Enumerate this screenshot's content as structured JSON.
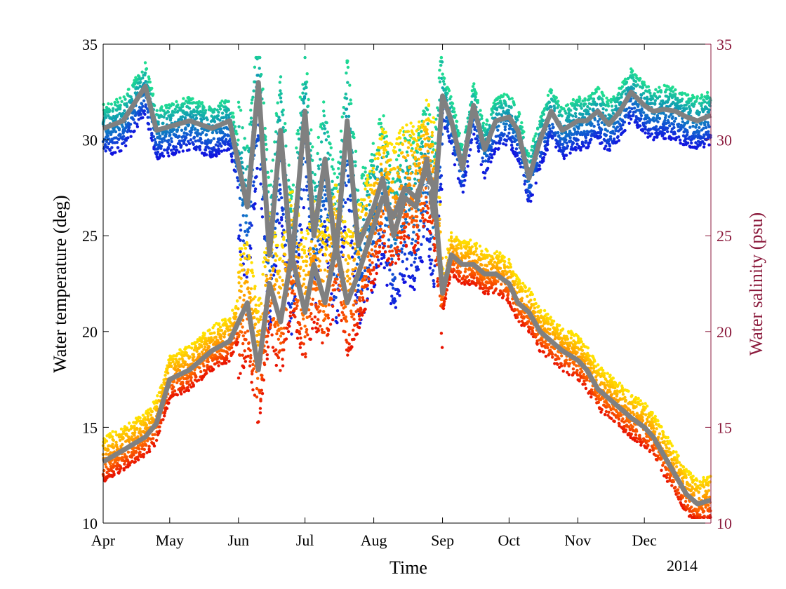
{
  "chart_data": {
    "type": "scatter",
    "xlabel": "Time",
    "year_label": "2014",
    "ylabel_left": "Water temperature (deg)",
    "ylabel_right": "Water salinity (psu)",
    "xlim": [
      "2014-04-01",
      "2014-12-31"
    ],
    "ylim_left": [
      10,
      35
    ],
    "ylim_right": [
      10,
      35
    ],
    "x_ticks": [
      {
        "date": "2014-04-01",
        "label": "Apr"
      },
      {
        "date": "2014-05-01",
        "label": "May"
      },
      {
        "date": "2014-06-01",
        "label": "Jun"
      },
      {
        "date": "2014-07-01",
        "label": "Jul"
      },
      {
        "date": "2014-08-01",
        "label": "Aug"
      },
      {
        "date": "2014-09-01",
        "label": "Sep"
      },
      {
        "date": "2014-10-01",
        "label": "Oct"
      },
      {
        "date": "2014-11-01",
        "label": "Nov"
      },
      {
        "date": "2014-12-01",
        "label": "Dec"
      }
    ],
    "y_ticks_left": [
      10,
      15,
      20,
      25,
      30,
      35
    ],
    "y_ticks_right": [
      10,
      15,
      20,
      25,
      30,
      35
    ],
    "grid": false,
    "colors": {
      "right_axis": "#8b1a3c",
      "mean_line": "#808080",
      "temperature_scale": [
        "#ffe600",
        "#ffb000",
        "#ff6a00",
        "#e81000"
      ],
      "salinity_scale": [
        "#1010e0",
        "#1060d0",
        "#10a0b0",
        "#20e090"
      ]
    },
    "series": [
      {
        "role": "salinity",
        "axis": "right",
        "x": [
          "2014-04-01",
          "2014-04-10",
          "2014-04-20",
          "2014-04-25",
          "2014-05-01",
          "2014-05-10",
          "2014-05-20",
          "2014-05-28",
          "2014-06-05",
          "2014-06-10",
          "2014-06-15",
          "2014-06-20",
          "2014-06-25",
          "2014-07-01",
          "2014-07-05",
          "2014-07-10",
          "2014-07-15",
          "2014-07-20",
          "2014-07-25",
          "2014-08-01",
          "2014-08-05",
          "2014-08-10",
          "2014-08-15",
          "2014-08-20",
          "2014-08-25",
          "2014-08-28",
          "2014-09-01",
          "2014-09-05",
          "2014-09-10",
          "2014-09-15",
          "2014-09-20",
          "2014-09-25",
          "2014-10-01",
          "2014-10-05",
          "2014-10-10",
          "2014-10-15",
          "2014-10-20",
          "2014-10-25",
          "2014-11-01",
          "2014-11-05",
          "2014-11-10",
          "2014-11-15",
          "2014-11-20",
          "2014-11-25",
          "2014-12-01",
          "2014-12-05",
          "2014-12-10",
          "2014-12-15",
          "2014-12-20",
          "2014-12-25",
          "2014-12-31"
        ],
        "y": [
          30.6,
          31.0,
          32.8,
          30.5,
          30.7,
          31.0,
          30.6,
          31.0,
          26.5,
          33.0,
          24.0,
          30.5,
          23.5,
          31.5,
          25.0,
          29.0,
          24.0,
          31.0,
          24.5,
          26.5,
          28.0,
          25.0,
          27.0,
          26.5,
          29.0,
          26.0,
          32.3,
          31.0,
          28.5,
          31.8,
          29.5,
          31.0,
          31.2,
          30.5,
          28.0,
          30.0,
          31.5,
          30.5,
          31.0,
          31.0,
          31.5,
          30.8,
          31.5,
          32.5,
          31.8,
          31.5,
          31.6,
          31.5,
          31.2,
          31.0,
          31.3
        ]
      },
      {
        "role": "temperature",
        "axis": "left",
        "x": [
          "2014-04-01",
          "2014-04-10",
          "2014-04-20",
          "2014-04-25",
          "2014-05-01",
          "2014-05-10",
          "2014-05-20",
          "2014-05-28",
          "2014-06-05",
          "2014-06-10",
          "2014-06-15",
          "2014-06-20",
          "2014-06-25",
          "2014-07-01",
          "2014-07-05",
          "2014-07-10",
          "2014-07-15",
          "2014-07-20",
          "2014-07-25",
          "2014-08-01",
          "2014-08-05",
          "2014-08-10",
          "2014-08-15",
          "2014-08-20",
          "2014-08-25",
          "2014-08-28",
          "2014-09-01",
          "2014-09-05",
          "2014-09-10",
          "2014-09-15",
          "2014-09-20",
          "2014-09-25",
          "2014-10-01",
          "2014-10-05",
          "2014-10-10",
          "2014-10-15",
          "2014-10-20",
          "2014-10-25",
          "2014-11-01",
          "2014-11-05",
          "2014-11-10",
          "2014-11-15",
          "2014-11-20",
          "2014-11-25",
          "2014-12-01",
          "2014-12-05",
          "2014-12-10",
          "2014-12-15",
          "2014-12-20",
          "2014-12-25",
          "2014-12-31"
        ],
        "y": [
          13.2,
          13.8,
          14.5,
          15.2,
          17.5,
          18.0,
          19.0,
          19.5,
          21.5,
          18.0,
          22.5,
          20.5,
          24.0,
          21.0,
          23.5,
          21.5,
          24.5,
          21.5,
          23.0,
          25.5,
          27.0,
          26.0,
          27.5,
          27.0,
          28.5,
          27.5,
          22.0,
          24.0,
          23.5,
          23.5,
          23.0,
          23.0,
          22.5,
          21.5,
          21.0,
          20.0,
          19.5,
          19.0,
          18.5,
          18.0,
          17.0,
          16.5,
          16.0,
          15.5,
          15.0,
          14.5,
          13.5,
          12.5,
          11.5,
          11.0,
          11.2
        ]
      }
    ],
    "annotations": [
      {
        "date": "2014-08-25",
        "y": 27.5,
        "marker": "open-circle"
      }
    ]
  }
}
